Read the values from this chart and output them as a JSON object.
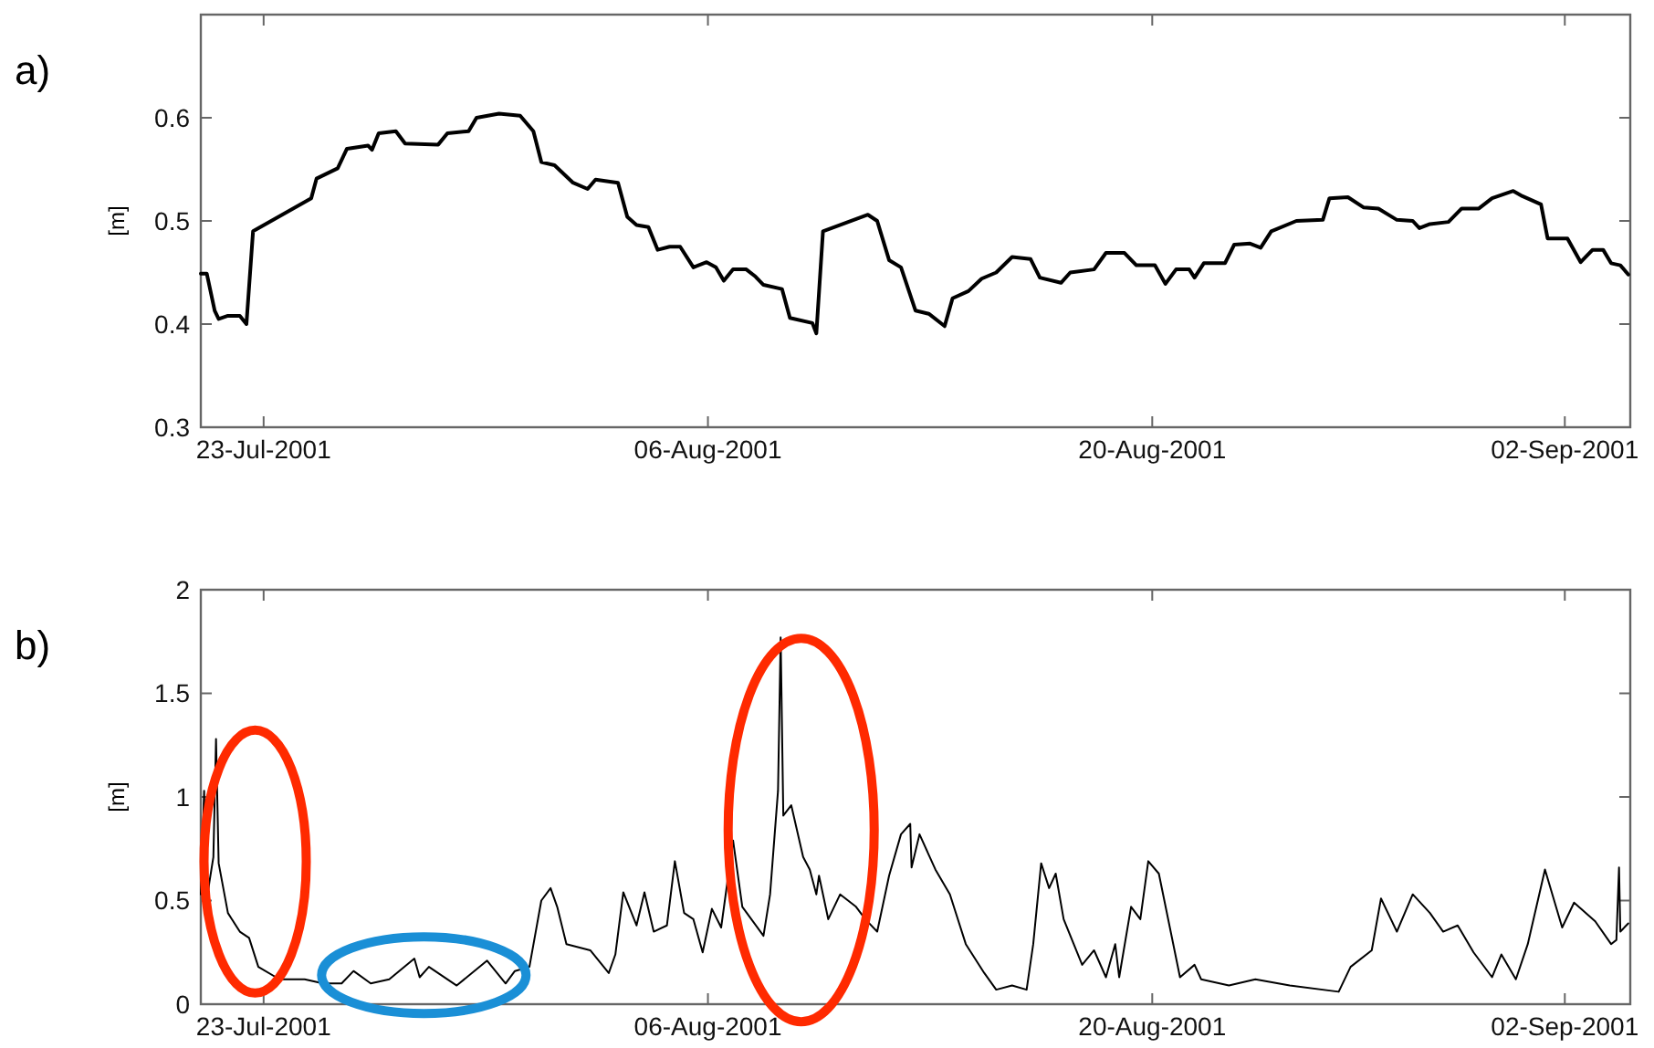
{
  "chart_data": [
    {
      "type": "line",
      "title": "a)",
      "ylabel": "[m]",
      "x": [
        "2001-07-21T00:30",
        "2001-07-21T05:00",
        "2001-07-21T11:00",
        "2001-07-21T14:00",
        "2001-07-21T21:00",
        "2001-07-22T06:00",
        "2001-07-22T11:00",
        "2001-07-22T16:00",
        "2001-07-24T12:00",
        "2001-07-24T16:00",
        "2001-07-25T08:00",
        "2001-07-25T15:00",
        "2001-07-26T07:00",
        "2001-07-26T10:00",
        "2001-07-26T15:00",
        "2001-07-27T04:00",
        "2001-07-27T11:00",
        "2001-07-28T12:00",
        "2001-07-28T19:00",
        "2001-07-29T11:00",
        "2001-07-29T17:00",
        "2001-07-30T10:00",
        "2001-07-31T02:00",
        "2001-07-31T12:00",
        "2001-07-31T18:00",
        "2001-08-01T04:00",
        "2001-08-01T18:00",
        "2001-08-02T05:00",
        "2001-08-02T11:00",
        "2001-08-03T04:00",
        "2001-08-03T11:00",
        "2001-08-03T18:00",
        "2001-08-04T03:00",
        "2001-08-04T10:00",
        "2001-08-04T19:00",
        "2001-08-05T03:00",
        "2001-08-05T13:00",
        "2001-08-05T23:00",
        "2001-08-06T06:00",
        "2001-08-06T12:00",
        "2001-08-06T19:00",
        "2001-08-07T05:00",
        "2001-08-07T12:00",
        "2001-08-07T18:00",
        "2001-08-08T08:00",
        "2001-08-08T14:00",
        "2001-08-09T07:00",
        "2001-08-09T10:00",
        "2001-08-09T15:00",
        "2001-08-11T01:00",
        "2001-08-11T08:00",
        "2001-08-11T17:00",
        "2001-08-12T02:00",
        "2001-08-12T13:00",
        "2001-08-12T23:00",
        "2001-08-13T11:00",
        "2001-08-13T17:00",
        "2001-08-14T05:00",
        "2001-08-14T15:00",
        "2001-08-15T02:00",
        "2001-08-15T14:00",
        "2001-08-16T04:00",
        "2001-08-16T11:00",
        "2001-08-17T03:00",
        "2001-08-17T10:00",
        "2001-08-18T04:00",
        "2001-08-18T13:00",
        "2001-08-19T03:00",
        "2001-08-19T12:00",
        "2001-08-20T02:00",
        "2001-08-20T10:00",
        "2001-08-20T18:00",
        "2001-08-21T04:00",
        "2001-08-21T08:00",
        "2001-08-21T15:00",
        "2001-08-22T07:00",
        "2001-08-22T14:00",
        "2001-08-23T02:00",
        "2001-08-23T10:00",
        "2001-08-23T18:00",
        "2001-08-24T13:00",
        "2001-08-25T09:00",
        "2001-08-25T14:00",
        "2001-08-26T04:00",
        "2001-08-26T16:00",
        "2001-08-27T03:00",
        "2001-08-27T17:00",
        "2001-08-28T05:00",
        "2001-08-28T10:00",
        "2001-08-28T18:00",
        "2001-08-29T08:00",
        "2001-08-29T18:00",
        "2001-08-30T07:00",
        "2001-08-30T17:00",
        "2001-08-31T09:00",
        "2001-08-31T16:00",
        "2001-09-01T06:00",
        "2001-09-01T11:00",
        "2001-09-02T02:00",
        "2001-09-02T12:00",
        "2001-09-02T21:00",
        "2001-09-03T05:00",
        "2001-09-03T11:00",
        "2001-09-03T18:00",
        "2001-09-04T00:00"
      ],
      "series": [
        {
          "color": "#000000",
          "values": [
            0.449,
            0.449,
            0.413,
            0.405,
            0.408,
            0.408,
            0.4,
            0.49,
            0.522,
            0.541,
            0.551,
            0.57,
            0.573,
            0.569,
            0.585,
            0.587,
            0.575,
            0.574,
            0.585,
            0.587,
            0.6,
            0.604,
            0.602,
            0.587,
            0.557,
            0.554,
            0.537,
            0.531,
            0.54,
            0.537,
            0.504,
            0.496,
            0.494,
            0.472,
            0.475,
            0.475,
            0.455,
            0.46,
            0.455,
            0.442,
            0.453,
            0.453,
            0.446,
            0.438,
            0.434,
            0.406,
            0.401,
            0.391,
            0.49,
            0.506,
            0.5,
            0.462,
            0.455,
            0.413,
            0.41,
            0.398,
            0.425,
            0.432,
            0.444,
            0.45,
            0.465,
            0.463,
            0.445,
            0.44,
            0.45,
            0.453,
            0.469,
            0.469,
            0.457,
            0.457,
            0.439,
            0.453,
            0.453,
            0.445,
            0.459,
            0.459,
            0.477,
            0.478,
            0.474,
            0.49,
            0.5,
            0.501,
            0.522,
            0.523,
            0.513,
            0.512,
            0.501,
            0.5,
            0.493,
            0.497,
            0.499,
            0.512,
            0.512,
            0.522,
            0.529,
            0.524,
            0.516,
            0.483,
            0.483,
            0.46,
            0.472,
            0.472,
            0.459,
            0.457,
            0.448
          ]
        }
      ],
      "xlim": [
        "2001-07-21T00:30",
        "2001-09-04T01:30"
      ],
      "ylim": [
        0.3,
        0.7
      ],
      "xticks": [
        {
          "value": "2001-07-23",
          "label": "23-Jul-2001"
        },
        {
          "value": "2001-08-06",
          "label": "06-Aug-2001"
        },
        {
          "value": "2001-08-20",
          "label": "20-Aug-2001"
        },
        {
          "value": "2001-09-02",
          "label": "02-Sep-2001"
        }
      ],
      "yticks": [
        0.3,
        0.4,
        0.5,
        0.6
      ]
    },
    {
      "type": "line",
      "title": "b)",
      "ylabel": "[m]",
      "x": [
        "2001-07-21T00:30",
        "2001-07-21T03:00",
        "2001-07-21T05:00",
        "2001-07-21T07:00",
        "2001-07-21T10:00",
        "2001-07-21T12:00",
        "2001-07-21T14:00",
        "2001-07-21T21:00",
        "2001-07-22T06:00",
        "2001-07-22T13:00",
        "2001-07-22T20:00",
        "2001-07-23T12:00",
        "2001-07-24T07:00",
        "2001-07-24T21:00",
        "2001-07-25T11:00",
        "2001-07-25T20:00",
        "2001-07-26T09:00",
        "2001-07-26T23:00",
        "2001-07-27T18:00",
        "2001-07-27T22:00",
        "2001-07-28T05:00",
        "2001-07-29T02:00",
        "2001-07-30T01:00",
        "2001-07-30T15:00",
        "2001-07-30T22:00",
        "2001-07-31T09:00",
        "2001-07-31T18:00",
        "2001-08-01T01:00",
        "2001-08-01T06:00",
        "2001-08-01T13:00",
        "2001-08-02T07:00",
        "2001-08-02T21:00",
        "2001-08-03T02:00",
        "2001-08-03T08:00",
        "2001-08-03T18:00",
        "2001-08-04T00:00",
        "2001-08-04T07:00",
        "2001-08-04T17:00",
        "2001-08-04T23:00",
        "2001-08-05T06:00",
        "2001-08-05T13:00",
        "2001-08-05T20:00",
        "2001-08-06T03:00",
        "2001-08-06T10:00",
        "2001-08-06T19:00",
        "2001-08-07T02:00",
        "2001-08-07T18:00",
        "2001-08-07T23:00",
        "2001-08-08T05:00",
        "2001-08-08T07:00",
        "2001-08-08T09:00",
        "2001-08-08T15:00",
        "2001-08-09T00:00",
        "2001-08-09T05:00",
        "2001-08-09T10:00",
        "2001-08-09T12:00",
        "2001-08-09T19:00",
        "2001-08-10T04:00",
        "2001-08-10T16:00",
        "2001-08-10T23:00",
        "2001-08-11T08:00",
        "2001-08-11T17:00",
        "2001-08-12T02:00",
        "2001-08-12T09:00",
        "2001-08-12T10:00",
        "2001-08-12T16:00",
        "2001-08-13T04:00",
        "2001-08-13T15:00",
        "2001-08-14T03:00",
        "2001-08-14T17:00",
        "2001-08-15T02:00",
        "2001-08-15T14:00",
        "2001-08-16T01:00",
        "2001-08-16T06:00",
        "2001-08-16T12:00",
        "2001-08-16T18:00",
        "2001-08-16T23:00",
        "2001-08-17T05:00",
        "2001-08-17T19:00",
        "2001-08-18T04:00",
        "2001-08-18T13:00",
        "2001-08-18T20:00",
        "2001-08-18T23:00",
        "2001-08-19T08:00",
        "2001-08-19T15:00",
        "2001-08-19T21:00",
        "2001-08-20T05:00",
        "2001-08-20T21:00",
        "2001-08-21T08:00",
        "2001-08-21T13:00",
        "2001-08-22T10:00",
        "2001-08-23T06:00",
        "2001-08-24T08:00",
        "2001-08-25T21:00",
        "2001-08-26T06:00",
        "2001-08-26T22:00",
        "2001-08-27T05:00",
        "2001-08-27T17:00",
        "2001-08-28T05:00",
        "2001-08-28T18:00",
        "2001-08-29T04:00",
        "2001-08-29T15:00",
        "2001-08-30T03:00",
        "2001-08-30T17:00",
        "2001-08-31T00:00",
        "2001-08-31T11:00",
        "2001-08-31T20:00",
        "2001-09-01T09:00",
        "2001-09-01T22:00",
        "2001-09-02T07:00",
        "2001-09-02T23:00",
        "2001-09-03T11:00",
        "2001-09-03T15:00",
        "2001-09-03T17:00",
        "2001-09-03T18:00",
        "2001-09-04T00:00"
      ],
      "series": [
        {
          "color": "#000000",
          "values": [
            0.53,
            1.03,
            0.5,
            0.59,
            0.71,
            1.28,
            0.68,
            0.44,
            0.35,
            0.32,
            0.18,
            0.12,
            0.12,
            0.1,
            0.1,
            0.16,
            0.1,
            0.12,
            0.22,
            0.13,
            0.18,
            0.09,
            0.21,
            0.1,
            0.16,
            0.18,
            0.5,
            0.56,
            0.47,
            0.29,
            0.26,
            0.15,
            0.24,
            0.54,
            0.38,
            0.54,
            0.35,
            0.38,
            0.69,
            0.44,
            0.41,
            0.25,
            0.46,
            0.37,
            0.79,
            0.47,
            0.33,
            0.53,
            1.03,
            1.77,
            0.91,
            0.96,
            0.71,
            0.65,
            0.53,
            0.62,
            0.41,
            0.53,
            0.47,
            0.41,
            0.35,
            0.62,
            0.82,
            0.87,
            0.66,
            0.82,
            0.65,
            0.53,
            0.29,
            0.15,
            0.07,
            0.09,
            0.07,
            0.29,
            0.68,
            0.56,
            0.63,
            0.41,
            0.19,
            0.26,
            0.13,
            0.29,
            0.13,
            0.47,
            0.41,
            0.69,
            0.63,
            0.13,
            0.19,
            0.12,
            0.09,
            0.12,
            0.09,
            0.06,
            0.18,
            0.26,
            0.51,
            0.35,
            0.53,
            0.44,
            0.35,
            0.38,
            0.25,
            0.13,
            0.24,
            0.12,
            0.29,
            0.65,
            0.37,
            0.49,
            0.4,
            0.29,
            0.31,
            0.66,
            0.35,
            0.39
          ]
        }
      ],
      "xlim": [
        "2001-07-21T00:30",
        "2001-09-04T01:30"
      ],
      "ylim": [
        0,
        2
      ],
      "xticks": [
        {
          "value": "2001-07-23",
          "label": "23-Jul-2001"
        },
        {
          "value": "2001-08-06",
          "label": "06-Aug-2001"
        },
        {
          "value": "2001-08-20",
          "label": "20-Aug-2001"
        },
        {
          "value": "2001-09-02",
          "label": "02-Sep-2001"
        }
      ],
      "yticks": [
        0,
        0.5,
        1,
        1.5,
        2
      ]
    }
  ]
}
